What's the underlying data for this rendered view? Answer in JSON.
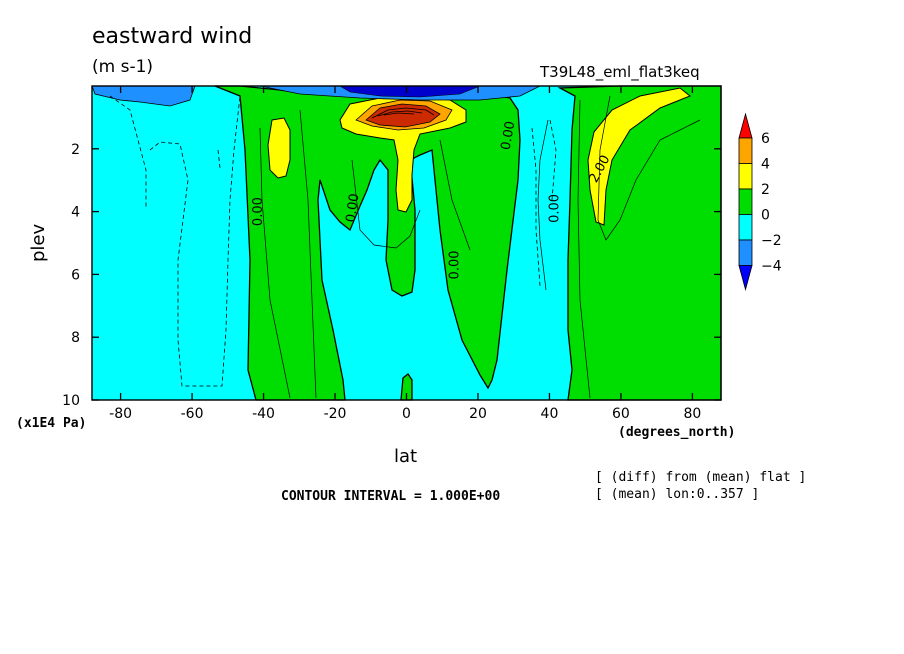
{
  "chart_data": {
    "type": "contour",
    "title": "eastward wind",
    "units": "(m s-1)",
    "experiment": "T39L48_eml_flat3keq",
    "xlabel": "lat",
    "xunits": "(degrees_north)",
    "ylabel": "plev",
    "yunits": "(x1E4 Pa)",
    "xlim": [
      -88,
      88
    ],
    "ylim": [
      10,
      0
    ],
    "x_ticks": [
      "-80",
      "-60",
      "-40",
      "-20",
      "0",
      "20",
      "40",
      "60",
      "80"
    ],
    "x_tick_values": [
      -80,
      -60,
      -40,
      -20,
      0,
      20,
      40,
      60,
      80
    ],
    "y_ticks": [
      "2",
      "4",
      "6",
      "8",
      "10"
    ],
    "y_tick_values": [
      2,
      4,
      6,
      8,
      10
    ],
    "contour_interval_text": "CONTOUR INTERVAL = 1.000E+00",
    "contour_labels": [
      "0.00",
      "0.00",
      "0.00",
      "0.00",
      "0.00",
      "2.00"
    ],
    "notes": [
      "[ (diff) from (mean) flat ]",
      "[ (mean) lon:0..357 ]"
    ],
    "colorbar": {
      "labels": [
        "6",
        "4",
        "2",
        "0",
        "−2",
        "−4"
      ],
      "levels": [
        6,
        4,
        2,
        0,
        -2,
        -4
      ],
      "colors": [
        "#ff0000",
        "#ffa500",
        "#ffff00",
        "#00dd00",
        "#00ffff",
        "#1e90ff",
        "#0000ff"
      ]
    }
  },
  "colors": {
    "cyan": "#00ffff",
    "green": "#00dd00",
    "yellow": "#ffff00",
    "orange": "#ffa500",
    "red": "#ff0000",
    "blue": "#1e90ff",
    "darkblue": "#0000cd"
  }
}
